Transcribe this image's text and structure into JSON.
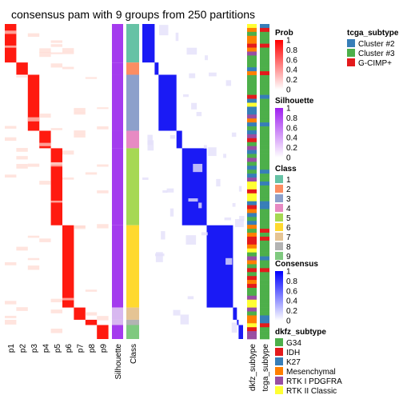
{
  "chart_data": {
    "type": "heatmap",
    "title": "consensus pam with 9 groups from 250 partitions",
    "columns": [
      "p1",
      "p2",
      "p3",
      "p4",
      "p5",
      "p6",
      "p7",
      "p8",
      "p9"
    ],
    "annotation_columns": [
      "Silhouette",
      "Class"
    ],
    "row_annotation_labels": [
      "dkfz_subtype",
      "tcga_subtype"
    ],
    "class_blocks": [
      {
        "class": 1,
        "fraction": 0.11
      },
      {
        "class": 2,
        "fraction": 0.035
      },
      {
        "class": 3,
        "fraction": 0.16
      },
      {
        "class": 4,
        "fraction": 0.05
      },
      {
        "class": 5,
        "fraction": 0.22
      },
      {
        "class": 6,
        "fraction": 0.235
      },
      {
        "class": 7,
        "fraction": 0.035
      },
      {
        "class": 8,
        "fraction": 0.015
      },
      {
        "class": 9,
        "fraction": 0.04
      }
    ],
    "legends": {
      "prob": {
        "title": "Prob",
        "ticks": [
          "1",
          "0.8",
          "0.6",
          "0.4",
          "0.2",
          "0"
        ]
      },
      "silhouette": {
        "title": "Silhouette",
        "ticks": [
          "1",
          "0.8",
          "0.6",
          "0.4",
          "0.2",
          "0"
        ]
      },
      "class": {
        "title": "Class",
        "items": [
          "1",
          "2",
          "3",
          "4",
          "5",
          "6",
          "7",
          "8",
          "9"
        ],
        "colors": [
          "#66C2A5",
          "#FC8D62",
          "#8DA0CB",
          "#E78AC3",
          "#A6D854",
          "#FFD92F",
          "#E5C494",
          "#B3B3B3",
          "#7FC97F"
        ]
      },
      "consensus": {
        "title": "Consensus",
        "ticks": [
          "1",
          "0.8",
          "0.6",
          "0.4",
          "0.2",
          "0"
        ]
      },
      "dkfz_subtype": {
        "title": "dkfz_subtype",
        "items": [
          "G34",
          "IDH",
          "K27",
          "Mesenchymal",
          "RTK I PDGFRA",
          "RTK II Classic"
        ],
        "colors": [
          "#4DAF4A",
          "#E41A1C",
          "#377EB8",
          "#FF7F00",
          "#984EA3",
          "#FFFF33"
        ]
      },
      "tcga_subtype": {
        "title": "tcga_subtype",
        "items": [
          "Cluster #2",
          "Cluster #3",
          "G-CIMP+"
        ],
        "colors": [
          "#377EB8",
          "#4DAF4A",
          "#E41A1C"
        ]
      }
    },
    "colors": {
      "prob_high": "#FF0000",
      "consensus_high": "#0000FF",
      "silhouette_high": "#A020F0"
    }
  }
}
